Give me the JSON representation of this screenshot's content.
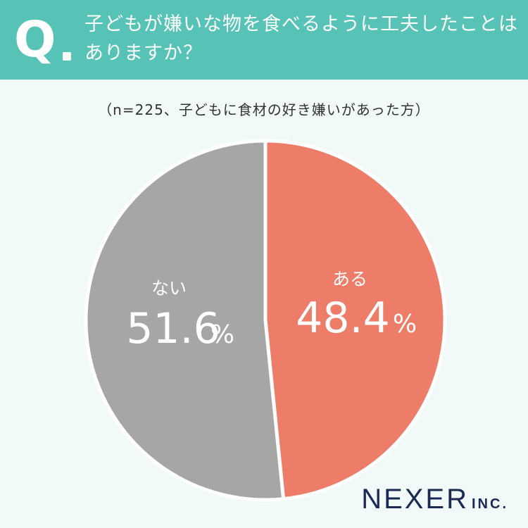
{
  "header": {
    "q_mark": "Q",
    "question": "子どもが嫌いな物を食べるように工夫したことはありますか？"
  },
  "note": "（n=225、子どもに食材の好き嫌いがあった方）",
  "chart_data": {
    "type": "pie",
    "categories": [
      "ある",
      "ない"
    ],
    "values": [
      48.4,
      51.6
    ],
    "value_labels": [
      "48.4",
      "51.6"
    ],
    "unit": "%",
    "colors": [
      "#ed7d68",
      "#a6a6a6"
    ],
    "start_angle_deg": 0,
    "direction": "clockwise"
  },
  "brand": {
    "name": "NEXER",
    "suffix": "INC."
  }
}
